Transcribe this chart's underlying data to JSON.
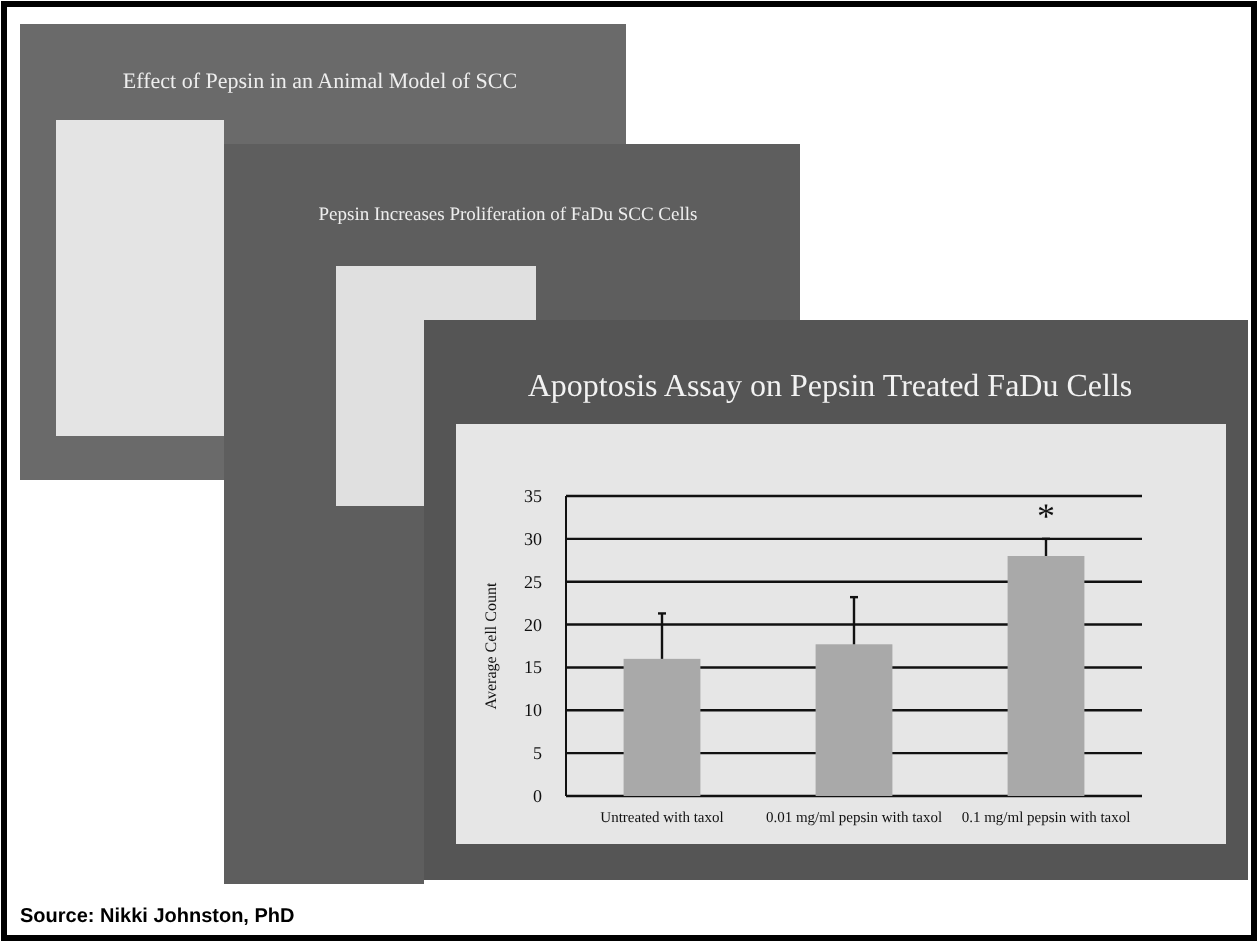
{
  "chart_data": {
    "type": "bar",
    "title": "Apoptosis Assay on Pepsin Treated FaDu Cells",
    "ylabel": "Average Cell Count",
    "categories": [
      "Untreated with taxol",
      "0.01 mg/ml pepsin with taxol",
      "0.1 mg/ml pepsin with taxol"
    ],
    "values": [
      16,
      17.7,
      28
    ],
    "errors": [
      [
        16,
        21.3
      ],
      [
        17.7,
        23.2
      ],
      [
        28,
        30
      ]
    ],
    "color": "#a9a9a9",
    "ylim": [
      0,
      35
    ],
    "yticks": [
      0,
      5,
      10,
      15,
      20,
      25,
      30,
      35
    ],
    "grid": "y",
    "annotations": [
      "*",
      "Effect of Pepsin in an Animal Model of SCC",
      "Pepsin Increases Proliferation of FaDu SCC Cells",
      "Source: Nikki Johnston, PhD"
    ]
  }
}
